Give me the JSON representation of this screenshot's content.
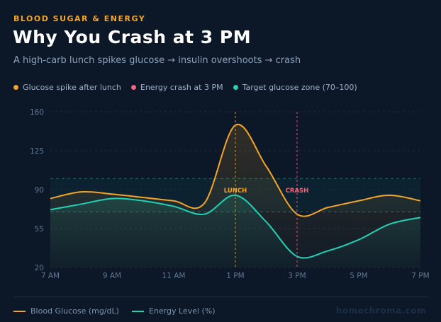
{
  "header": {
    "eyebrow": "BLOOD SUGAR & ENERGY",
    "title": "Why You Crash at 3 PM",
    "subtitle": "A high-carb lunch spikes glucose → insulin overshoots → crash"
  },
  "top_legend": [
    {
      "label": "Glucose spike after lunch",
      "color": "#f5a524"
    },
    {
      "label": "Energy crash at 3 PM",
      "color": "#f0677a"
    },
    {
      "label": "Target glucose zone (70–100)",
      "color": "#1fd1b5"
    }
  ],
  "bottom_legend": [
    {
      "label": "Blood Glucose (mg/dL)",
      "color": "#f5a524"
    },
    {
      "label": "Energy Level (%)",
      "color": "#1fd1b5"
    }
  ],
  "brand": "homechroma.com",
  "chart_data": {
    "type": "line",
    "x": [
      "7 AM",
      "8 AM",
      "9 AM",
      "10 AM",
      "11 AM",
      "12 PM",
      "1 PM",
      "2 PM",
      "3 PM",
      "4 PM",
      "5 PM",
      "6 PM",
      "7 PM"
    ],
    "x_tick_labels": [
      "7 AM",
      "9 AM",
      "11 AM",
      "1 PM",
      "3 PM",
      "5 PM",
      "7 PM"
    ],
    "y_ticks": [
      20,
      55,
      90,
      125,
      160
    ],
    "ylim": [
      20,
      160
    ],
    "grid": true,
    "series": [
      {
        "name": "Blood Glucose (mg/dL)",
        "color": "#f5a524",
        "values": [
          82,
          88,
          86,
          83,
          80,
          78,
          148,
          111,
          68,
          74,
          80,
          85,
          80
        ]
      },
      {
        "name": "Energy Level (%)",
        "color": "#1fd1b5",
        "values": [
          72,
          77,
          82,
          80,
          75,
          68,
          85,
          61,
          30,
          35,
          45,
          59,
          65
        ]
      }
    ],
    "target_zone": [
      70,
      100
    ],
    "annotations": [
      {
        "label": "LUNCH",
        "x": "1 PM",
        "color": "#f5a524"
      },
      {
        "label": "CRASH",
        "x": "3 PM",
        "color": "#f0677a"
      }
    ]
  }
}
